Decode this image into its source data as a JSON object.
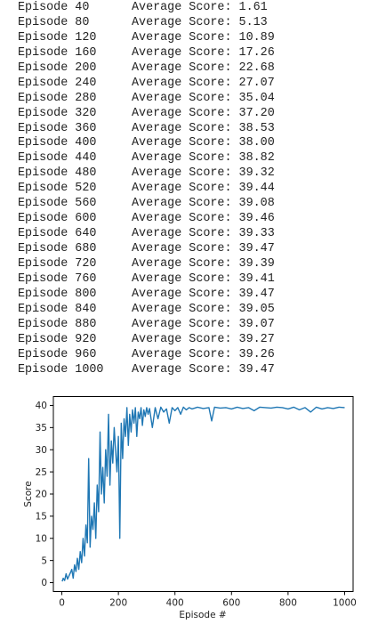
{
  "log": {
    "prefix": "Episode",
    "score_label": "Average Score:",
    "lines": [
      {
        "episode": "40",
        "score": "1.61"
      },
      {
        "episode": "80",
        "score": "5.13"
      },
      {
        "episode": "120",
        "score": "10.89"
      },
      {
        "episode": "160",
        "score": "17.26"
      },
      {
        "episode": "200",
        "score": "22.68"
      },
      {
        "episode": "240",
        "score": "27.07"
      },
      {
        "episode": "280",
        "score": "35.04"
      },
      {
        "episode": "320",
        "score": "37.20"
      },
      {
        "episode": "360",
        "score": "38.53"
      },
      {
        "episode": "400",
        "score": "38.00"
      },
      {
        "episode": "440",
        "score": "38.82"
      },
      {
        "episode": "480",
        "score": "39.32"
      },
      {
        "episode": "520",
        "score": "39.44"
      },
      {
        "episode": "560",
        "score": "39.08"
      },
      {
        "episode": "600",
        "score": "39.46"
      },
      {
        "episode": "640",
        "score": "39.33"
      },
      {
        "episode": "680",
        "score": "39.47"
      },
      {
        "episode": "720",
        "score": "39.39"
      },
      {
        "episode": "760",
        "score": "39.41"
      },
      {
        "episode": "800",
        "score": "39.47"
      },
      {
        "episode": "840",
        "score": "39.05"
      },
      {
        "episode": "880",
        "score": "39.07"
      },
      {
        "episode": "920",
        "score": "39.27"
      },
      {
        "episode": "960",
        "score": "39.26"
      },
      {
        "episode": "1000",
        "score": "39.47"
      }
    ]
  },
  "chart_data": {
    "type": "line",
    "title": "",
    "xlabel": "Episode #",
    "ylabel": "Score",
    "xlim": [
      -30,
      1030
    ],
    "ylim": [
      -2,
      42
    ],
    "xticks": [
      0,
      200,
      400,
      600,
      800,
      1000
    ],
    "yticks": [
      0,
      5,
      10,
      15,
      20,
      25,
      30,
      35,
      40
    ],
    "grid": false,
    "legend": "none",
    "line_color": "#1f77b4",
    "series": [
      {
        "x": [
          1,
          5,
          10,
          15,
          20,
          25,
          30,
          35,
          40,
          45,
          50,
          55,
          60,
          65,
          70,
          75,
          80,
          85,
          90,
          95,
          100,
          105,
          110,
          115,
          120,
          125,
          130,
          135,
          140,
          145,
          150,
          155,
          160,
          165,
          170,
          175,
          180,
          185,
          190,
          195,
          200,
          205,
          210,
          215,
          220,
          225,
          230,
          235,
          240,
          245,
          250,
          255,
          260,
          265,
          270,
          275,
          280,
          285,
          290,
          295,
          300,
          305,
          310,
          320,
          330,
          340,
          350,
          360,
          370,
          380,
          390,
          400,
          410,
          420,
          430,
          440,
          450,
          460,
          480,
          500,
          520,
          530,
          540,
          560,
          580,
          600,
          620,
          640,
          660,
          680,
          700,
          720,
          740,
          760,
          780,
          800,
          820,
          840,
          860,
          880,
          900,
          920,
          940,
          960,
          980,
          1000
        ],
        "y": [
          0.3,
          1.0,
          0.5,
          2.0,
          0.8,
          1.5,
          2.2,
          3.0,
          1.0,
          4.0,
          2.5,
          5.5,
          3.0,
          7.0,
          4.5,
          10.0,
          6.0,
          13.0,
          9.0,
          28.0,
          8.0,
          15.0,
          12.0,
          18.0,
          10.0,
          22.0,
          16.0,
          34.0,
          20.0,
          26.0,
          18.0,
          30.0,
          24.0,
          38.0,
          22.0,
          32.0,
          27.0,
          35.0,
          30.0,
          25.0,
          33.0,
          10.0,
          36.0,
          28.0,
          37.0,
          33.0,
          39.5,
          31.0,
          38.0,
          34.0,
          39.0,
          36.0,
          39.5,
          33.0,
          38.5,
          37.0,
          39.5,
          35.5,
          39.0,
          37.5,
          39.5,
          38.0,
          39.3,
          35.0,
          39.5,
          37.0,
          39.6,
          38.5,
          39.2,
          36.0,
          39.5,
          38.8,
          39.5,
          38.0,
          39.6,
          39.0,
          39.5,
          39.2,
          39.6,
          39.3,
          39.5,
          36.5,
          39.6,
          39.4,
          39.5,
          39.2,
          39.6,
          39.3,
          39.5,
          38.8,
          39.6,
          39.5,
          39.4,
          39.6,
          39.5,
          39.2,
          39.6,
          39.0,
          39.5,
          38.5,
          39.6,
          39.2,
          39.5,
          39.3,
          39.6,
          39.5
        ]
      }
    ]
  }
}
